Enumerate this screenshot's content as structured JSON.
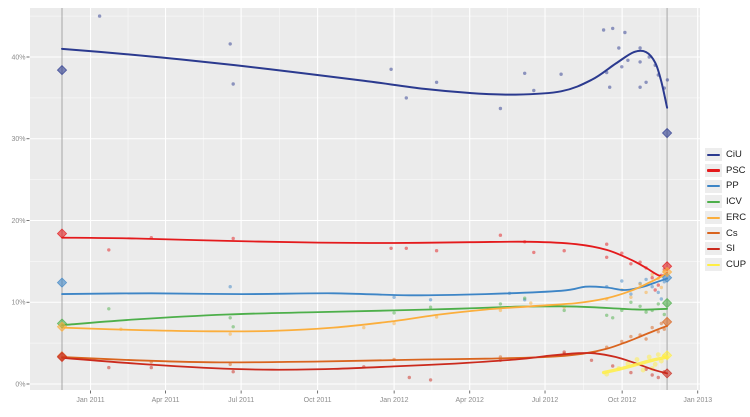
{
  "page": {
    "title": "",
    "background": "#ffffff"
  },
  "chart_data": {
    "type": "line",
    "subtype": "loess-trend-with-poll-scatter",
    "title": "",
    "xlabel": "",
    "ylabel": "",
    "grid": "on",
    "legend_position": "right",
    "panel": {
      "background": "#ebebeb",
      "grid_major_color": "#ffffff",
      "grid_minor_color": "#f7f7f7",
      "election_line_color": "#a6a6a6",
      "tick_color": "#4d4d4d",
      "axis_text_color": "#8c8c8c"
    },
    "x_axis": {
      "range_dates": [
        2010.8,
        2013.01
      ],
      "ticks": [
        {
          "date": 2011.0,
          "label": "Jan 2011"
        },
        {
          "date": 2011.247,
          "label": "Apr 2011"
        },
        {
          "date": 2011.496,
          "label": "Jul 2011"
        },
        {
          "date": 2011.748,
          "label": "Oct 2011"
        },
        {
          "date": 2012.0,
          "label": "Jan 2012"
        },
        {
          "date": 2012.249,
          "label": "Apr 2012"
        },
        {
          "date": 2012.497,
          "label": "Jul 2012"
        },
        {
          "date": 2012.751,
          "label": "Oct 2012"
        },
        {
          "date": 2013.0,
          "label": "Jan 2013"
        }
      ]
    },
    "y_axis": {
      "range_pct": [
        0,
        46
      ],
      "ticks": [
        {
          "v": 0,
          "label": "0%"
        },
        {
          "v": 10,
          "label": "10%"
        },
        {
          "v": 20,
          "label": "20%"
        },
        {
          "v": 30,
          "label": "30%"
        },
        {
          "v": 40,
          "label": "40%"
        }
      ]
    },
    "elections": {
      "start_date": 2010.906,
      "end_date": 2012.899
    },
    "series": [
      {
        "name": "CiU",
        "color": "#2b3a8f",
        "result_start": 38.4,
        "result_end": 30.7,
        "trend": [
          [
            2010.906,
            41.0
          ],
          [
            2011.1,
            40.4
          ],
          [
            2011.3,
            39.7
          ],
          [
            2011.5,
            38.9
          ],
          [
            2011.7,
            38.0
          ],
          [
            2011.9,
            37.1
          ],
          [
            2012.1,
            36.1
          ],
          [
            2012.25,
            35.6
          ],
          [
            2012.4,
            35.4
          ],
          [
            2012.55,
            35.8
          ],
          [
            2012.65,
            37.2
          ],
          [
            2012.73,
            39.2
          ],
          [
            2012.79,
            40.6
          ],
          [
            2012.83,
            40.6
          ],
          [
            2012.86,
            39.3
          ],
          [
            2012.88,
            37.0
          ],
          [
            2012.899,
            33.8
          ]
        ],
        "scatter": [
          [
            2011.03,
            45.0
          ],
          [
            2011.46,
            41.6
          ],
          [
            2011.47,
            36.7
          ],
          [
            2011.99,
            38.5
          ],
          [
            2012.04,
            35.0
          ],
          [
            2012.14,
            36.9
          ],
          [
            2012.35,
            33.7
          ],
          [
            2012.43,
            38.0
          ],
          [
            2012.46,
            35.9
          ],
          [
            2012.55,
            37.9
          ],
          [
            2012.69,
            43.3
          ],
          [
            2012.7,
            38.1
          ],
          [
            2012.71,
            36.3
          ],
          [
            2012.72,
            43.5
          ],
          [
            2012.74,
            41.1
          ],
          [
            2012.75,
            38.8
          ],
          [
            2012.76,
            43.0
          ],
          [
            2012.77,
            39.6
          ],
          [
            2012.81,
            41.1
          ],
          [
            2012.81,
            39.4
          ],
          [
            2012.81,
            36.3
          ],
          [
            2012.83,
            36.9
          ],
          [
            2012.84,
            40.0
          ],
          [
            2012.86,
            39.0
          ],
          [
            2012.87,
            37.8
          ],
          [
            2012.89,
            36.2
          ],
          [
            2012.9,
            37.2
          ]
        ]
      },
      {
        "name": "PSC",
        "color": "#e41a1c",
        "result_start": 18.4,
        "result_end": 14.4,
        "trend": [
          [
            2010.906,
            17.9
          ],
          [
            2011.15,
            17.8
          ],
          [
            2011.45,
            17.5
          ],
          [
            2011.75,
            17.3
          ],
          [
            2012.0,
            17.25
          ],
          [
            2012.25,
            17.35
          ],
          [
            2012.45,
            17.4
          ],
          [
            2012.6,
            17.1
          ],
          [
            2012.7,
            16.4
          ],
          [
            2012.78,
            15.2
          ],
          [
            2012.83,
            14.2
          ],
          [
            2012.86,
            13.5
          ],
          [
            2012.88,
            13.2
          ],
          [
            2012.899,
            13.6
          ]
        ],
        "scatter": [
          [
            2011.06,
            16.4
          ],
          [
            2011.2,
            17.9
          ],
          [
            2011.47,
            17.8
          ],
          [
            2011.99,
            16.6
          ],
          [
            2012.04,
            16.6
          ],
          [
            2012.14,
            16.3
          ],
          [
            2012.35,
            18.2
          ],
          [
            2012.43,
            17.4
          ],
          [
            2012.46,
            16.1
          ],
          [
            2012.56,
            16.3
          ],
          [
            2012.7,
            17.1
          ],
          [
            2012.7,
            15.5
          ],
          [
            2012.75,
            16.0
          ],
          [
            2012.78,
            14.7
          ],
          [
            2012.81,
            14.9
          ],
          [
            2012.83,
            14.2
          ],
          [
            2012.85,
            13.0
          ],
          [
            2012.86,
            11.5
          ],
          [
            2012.87,
            12.1
          ],
          [
            2012.88,
            13.3
          ],
          [
            2012.89,
            14.0
          ]
        ]
      },
      {
        "name": "PP",
        "color": "#3d85c6",
        "result_start": 12.4,
        "result_end": 13.0,
        "trend": [
          [
            2010.906,
            11.0
          ],
          [
            2011.2,
            11.1
          ],
          [
            2011.5,
            11.0
          ],
          [
            2011.8,
            11.1
          ],
          [
            2012.05,
            10.85
          ],
          [
            2012.3,
            11.0
          ],
          [
            2012.55,
            11.4
          ],
          [
            2012.63,
            11.9
          ],
          [
            2012.7,
            11.8
          ],
          [
            2012.76,
            11.5
          ],
          [
            2012.82,
            11.9
          ],
          [
            2012.86,
            12.4
          ],
          [
            2012.899,
            12.9
          ]
        ],
        "scatter": [
          [
            2011.46,
            11.9
          ],
          [
            2012.0,
            10.6
          ],
          [
            2012.12,
            10.3
          ],
          [
            2012.38,
            11.1
          ],
          [
            2012.43,
            10.3
          ],
          [
            2012.7,
            11.9
          ],
          [
            2012.75,
            12.6
          ],
          [
            2012.78,
            11.0
          ],
          [
            2012.81,
            12.3
          ],
          [
            2012.83,
            12.8
          ],
          [
            2012.85,
            11.9
          ],
          [
            2012.87,
            11.2
          ],
          [
            2012.88,
            10.4
          ],
          [
            2012.89,
            12.5
          ]
        ]
      },
      {
        "name": "ICV",
        "color": "#4daf4a",
        "result_start": 7.4,
        "result_end": 9.9,
        "trend": [
          [
            2010.906,
            7.2
          ],
          [
            2011.15,
            7.9
          ],
          [
            2011.45,
            8.5
          ],
          [
            2011.75,
            8.8
          ],
          [
            2012.0,
            9.0
          ],
          [
            2012.2,
            9.2
          ],
          [
            2012.4,
            9.45
          ],
          [
            2012.55,
            9.5
          ],
          [
            2012.65,
            9.4
          ],
          [
            2012.75,
            9.2
          ],
          [
            2012.82,
            9.1
          ],
          [
            2012.899,
            9.2
          ]
        ],
        "scatter": [
          [
            2011.06,
            9.2
          ],
          [
            2011.46,
            8.1
          ],
          [
            2011.47,
            7.0
          ],
          [
            2012.0,
            8.7
          ],
          [
            2012.12,
            9.4
          ],
          [
            2012.35,
            9.8
          ],
          [
            2012.43,
            10.5
          ],
          [
            2012.56,
            9.0
          ],
          [
            2012.7,
            8.4
          ],
          [
            2012.72,
            8.1
          ],
          [
            2012.75,
            9.0
          ],
          [
            2012.78,
            10.0
          ],
          [
            2012.81,
            9.5
          ],
          [
            2012.83,
            8.8
          ],
          [
            2012.85,
            9.0
          ],
          [
            2012.87,
            9.8
          ],
          [
            2012.89,
            8.5
          ]
        ]
      },
      {
        "name": "ERC",
        "color": "#fbae3c",
        "result_start": 7.0,
        "result_end": 13.7,
        "trend": [
          [
            2010.906,
            6.9
          ],
          [
            2011.15,
            6.6
          ],
          [
            2011.4,
            6.45
          ],
          [
            2011.6,
            6.5
          ],
          [
            2011.8,
            6.9
          ],
          [
            2012.0,
            7.7
          ],
          [
            2012.15,
            8.5
          ],
          [
            2012.3,
            9.1
          ],
          [
            2012.45,
            9.5
          ],
          [
            2012.6,
            9.9
          ],
          [
            2012.7,
            10.5
          ],
          [
            2012.78,
            11.4
          ],
          [
            2012.84,
            12.4
          ],
          [
            2012.899,
            13.5
          ]
        ],
        "scatter": [
          [
            2011.1,
            6.7
          ],
          [
            2011.46,
            6.1
          ],
          [
            2011.9,
            6.9
          ],
          [
            2012.0,
            7.4
          ],
          [
            2012.14,
            8.2
          ],
          [
            2012.35,
            9.0
          ],
          [
            2012.45,
            9.9
          ],
          [
            2012.56,
            9.4
          ],
          [
            2012.7,
            10.4
          ],
          [
            2012.75,
            11.5
          ],
          [
            2012.78,
            10.6
          ],
          [
            2012.81,
            12.2
          ],
          [
            2012.83,
            11.2
          ],
          [
            2012.85,
            13.4
          ],
          [
            2012.87,
            12.9
          ],
          [
            2012.88,
            11.8
          ],
          [
            2012.89,
            13.8
          ]
        ]
      },
      {
        "name": "Cs",
        "color": "#d9641e",
        "result_start": 3.4,
        "result_end": 7.6,
        "trend": [
          [
            2010.906,
            3.3
          ],
          [
            2011.15,
            2.9
          ],
          [
            2011.4,
            2.65
          ],
          [
            2011.65,
            2.7
          ],
          [
            2011.9,
            2.85
          ],
          [
            2012.1,
            3.0
          ],
          [
            2012.3,
            3.1
          ],
          [
            2012.5,
            3.3
          ],
          [
            2012.62,
            3.7
          ],
          [
            2012.7,
            4.3
          ],
          [
            2012.77,
            5.2
          ],
          [
            2012.83,
            6.1
          ],
          [
            2012.87,
            6.7
          ],
          [
            2012.899,
            7.1
          ]
        ],
        "scatter": [
          [
            2011.2,
            2.7
          ],
          [
            2011.46,
            2.4
          ],
          [
            2012.0,
            3.0
          ],
          [
            2012.35,
            3.3
          ],
          [
            2012.56,
            3.7
          ],
          [
            2012.7,
            4.5
          ],
          [
            2012.75,
            5.2
          ],
          [
            2012.78,
            5.8
          ],
          [
            2012.81,
            6.0
          ],
          [
            2012.83,
            5.5
          ],
          [
            2012.85,
            6.9
          ],
          [
            2012.87,
            6.4
          ],
          [
            2012.88,
            7.4
          ],
          [
            2012.89,
            6.7
          ]
        ]
      },
      {
        "name": "SI",
        "color": "#cb2a1d",
        "result_start": 3.3,
        "result_end": 1.3,
        "trend": [
          [
            2010.906,
            3.2
          ],
          [
            2011.15,
            2.5
          ],
          [
            2011.4,
            1.95
          ],
          [
            2011.6,
            1.75
          ],
          [
            2011.8,
            1.85
          ],
          [
            2012.0,
            2.15
          ],
          [
            2012.2,
            2.5
          ],
          [
            2012.4,
            3.0
          ],
          [
            2012.52,
            3.5
          ],
          [
            2012.6,
            3.75
          ],
          [
            2012.66,
            3.75
          ],
          [
            2012.73,
            3.3
          ],
          [
            2012.79,
            2.6
          ],
          [
            2012.85,
            1.8
          ],
          [
            2012.899,
            1.3
          ]
        ],
        "scatter": [
          [
            2011.06,
            2.0
          ],
          [
            2011.2,
            2.0
          ],
          [
            2011.47,
            1.5
          ],
          [
            2011.9,
            2.1
          ],
          [
            2012.05,
            0.8
          ],
          [
            2012.12,
            0.5
          ],
          [
            2012.35,
            2.9
          ],
          [
            2012.56,
            3.9
          ],
          [
            2012.65,
            2.9
          ],
          [
            2012.72,
            2.2
          ],
          [
            2012.78,
            1.4
          ],
          [
            2012.83,
            1.8
          ],
          [
            2012.85,
            1.1
          ],
          [
            2012.87,
            0.8
          ],
          [
            2012.89,
            1.5
          ]
        ]
      },
      {
        "name": "CUP",
        "color": "#ffee44",
        "result_start": null,
        "result_end": 3.5,
        "trend": [
          [
            2012.69,
            1.4
          ],
          [
            2012.75,
            1.9
          ],
          [
            2012.8,
            2.4
          ],
          [
            2012.85,
            2.9
          ],
          [
            2012.899,
            3.3
          ]
        ],
        "scatter": [
          [
            2012.7,
            1.2
          ],
          [
            2012.74,
            1.9
          ],
          [
            2012.77,
            2.5
          ],
          [
            2012.8,
            3.0
          ],
          [
            2012.82,
            1.7
          ],
          [
            2012.84,
            3.3
          ],
          [
            2012.85,
            1.9
          ],
          [
            2012.86,
            2.4
          ],
          [
            2012.87,
            3.6
          ],
          [
            2012.88,
            2.8
          ],
          [
            2012.89,
            3.4
          ]
        ]
      }
    ]
  }
}
